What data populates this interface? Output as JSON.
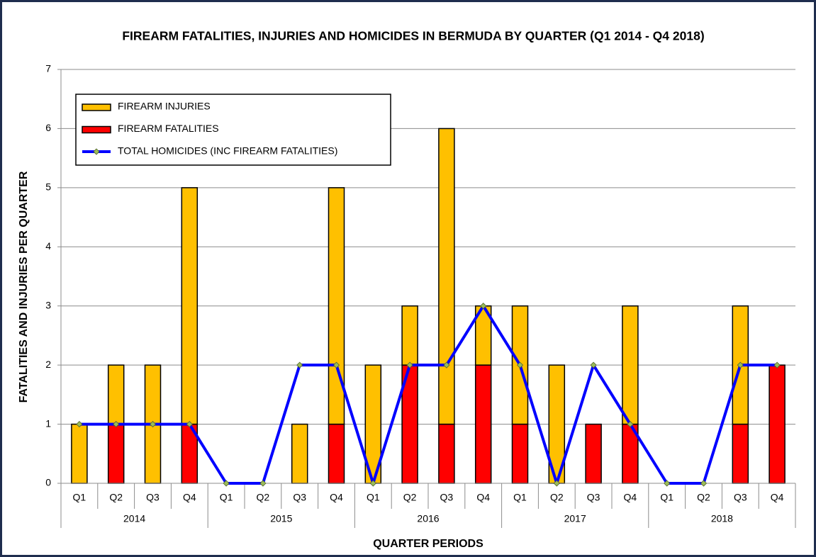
{
  "chart_data": {
    "type": "bar",
    "stacked": true,
    "title": "FIREARM FATALITIES, INJURIES AND HOMICIDES IN BERMUDA BY QUARTER (Q1 2014 - Q4 2018)",
    "y_label": "FATALITIES  AND  INJURIES  PER  QUARTER",
    "x_label": "QUARTER PERIODS",
    "categories": [
      "Q1",
      "Q2",
      "Q3",
      "Q4",
      "Q1",
      "Q2",
      "Q3",
      "Q4",
      "Q1",
      "Q2",
      "Q3",
      "Q4",
      "Q1",
      "Q2",
      "Q3",
      "Q4",
      "Q1",
      "Q2",
      "Q3",
      "Q4"
    ],
    "category_groups": [
      "2014",
      "2015",
      "2016",
      "2017",
      "2018"
    ],
    "series": [
      {
        "name": "FIREARM INJURIES",
        "type": "bar",
        "color": "#ffc000",
        "values": [
          1,
          1,
          2,
          4,
          0,
          0,
          1,
          4,
          2,
          1,
          5,
          1,
          2,
          2,
          0,
          2,
          0,
          0,
          2,
          0
        ]
      },
      {
        "name": "FIREARM FATALITIES",
        "type": "bar",
        "color": "#ff0000",
        "values": [
          0,
          1,
          0,
          1,
          0,
          0,
          0,
          1,
          0,
          2,
          1,
          2,
          1,
          0,
          1,
          1,
          0,
          0,
          1,
          2
        ]
      },
      {
        "name": "TOTAL HOMICIDES (INC FIREARM FATALITIES)",
        "type": "line",
        "color": "#0000ff",
        "values": [
          1,
          1,
          1,
          1,
          0,
          0,
          2,
          2,
          0,
          2,
          2,
          3,
          2,
          0,
          2,
          1,
          0,
          0,
          2,
          2
        ]
      }
    ],
    "ylim": [
      0,
      7
    ],
    "yticks": [
      0,
      1,
      2,
      3,
      4,
      5,
      6,
      7
    ],
    "grid": true,
    "legend": "upper left"
  }
}
